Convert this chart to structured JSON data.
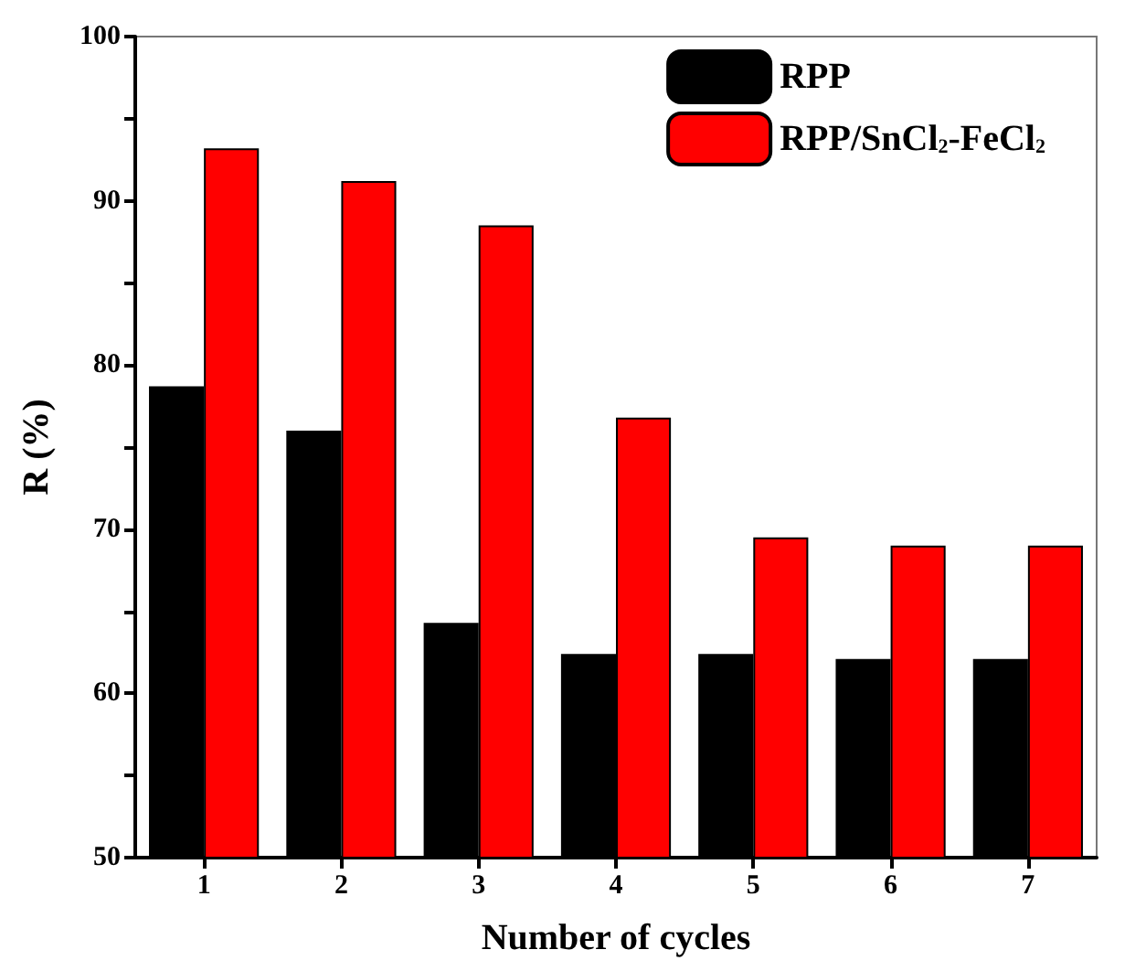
{
  "chart_data": {
    "type": "bar",
    "xlabel": "Number of cycles",
    "ylabel": "R (%)",
    "categories": [
      "1",
      "2",
      "3",
      "4",
      "5",
      "6",
      "7"
    ],
    "series": [
      {
        "name": "RPP",
        "color": "#000000",
        "values": [
          78.7,
          76.0,
          64.3,
          62.4,
          62.4,
          62.1,
          62.1
        ]
      },
      {
        "name": "RPP/SnCl$_{2}$-FeCl$_{2}$",
        "color": "#ff0000",
        "values": [
          93.2,
          91.2,
          88.5,
          76.8,
          69.5,
          69.0,
          69.0
        ]
      }
    ],
    "ylim": [
      50,
      100
    ],
    "yticks": [
      50,
      {
        "value": 55,
        "label": null
      },
      60,
      {
        "value": 65,
        "label": null
      },
      70,
      {
        "value": 75,
        "label": null
      },
      80,
      {
        "value": 85,
        "label": null
      },
      90,
      {
        "value": 95,
        "label": null
      },
      100
    ],
    "grid": false,
    "legend": "top right"
  }
}
